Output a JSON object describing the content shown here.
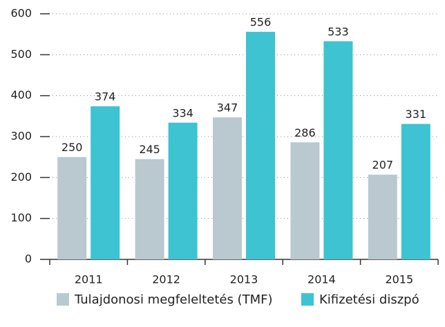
{
  "chart_data": {
    "type": "bar",
    "categories": [
      "2011",
      "2012",
      "2013",
      "2014",
      "2015"
    ],
    "series": [
      {
        "name": "Tulajdonosi megfeleltetés (TMF)",
        "color": "#bac8cf",
        "values": [
          250,
          245,
          347,
          286,
          207
        ]
      },
      {
        "name": "Kifizetési diszpó",
        "color": "#3dc3d2",
        "values": [
          374,
          334,
          556,
          533,
          331
        ]
      }
    ],
    "ylim": [
      0,
      600
    ],
    "yticks": [
      0,
      100,
      200,
      300,
      400,
      500,
      600
    ],
    "grid": true
  }
}
